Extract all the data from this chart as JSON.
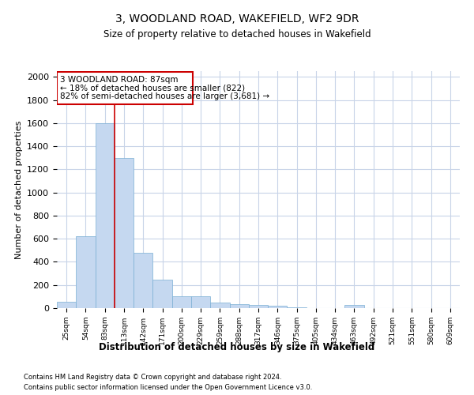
{
  "title1": "3, WOODLAND ROAD, WAKEFIELD, WF2 9DR",
  "title2": "Size of property relative to detached houses in Wakefield",
  "xlabel": "Distribution of detached houses by size in Wakefield",
  "ylabel": "Number of detached properties",
  "categories": [
    "25sqm",
    "54sqm",
    "83sqm",
    "113sqm",
    "142sqm",
    "171sqm",
    "200sqm",
    "229sqm",
    "259sqm",
    "288sqm",
    "317sqm",
    "346sqm",
    "375sqm",
    "405sqm",
    "434sqm",
    "463sqm",
    "492sqm",
    "521sqm",
    "551sqm",
    "580sqm",
    "609sqm"
  ],
  "values": [
    55,
    625,
    1600,
    1295,
    475,
    248,
    103,
    103,
    47,
    35,
    30,
    20,
    10,
    0,
    0,
    25,
    0,
    0,
    0,
    0,
    0
  ],
  "bar_color": "#c5d8f0",
  "bar_edge_color": "#7aafd4",
  "vline_index": 2,
  "vline_color": "#cc0000",
  "annotation_text_line1": "3 WOODLAND ROAD: 87sqm",
  "annotation_text_line2": "← 18% of detached houses are smaller (822)",
  "annotation_text_line3": "82% of semi-detached houses are larger (3,681) →",
  "annotation_box_color": "#cc0000",
  "footer1": "Contains HM Land Registry data © Crown copyright and database right 2024.",
  "footer2": "Contains public sector information licensed under the Open Government Licence v3.0.",
  "ylim": [
    0,
    2050
  ],
  "yticks": [
    0,
    200,
    400,
    600,
    800,
    1000,
    1200,
    1400,
    1600,
    1800,
    2000
  ],
  "background_color": "#ffffff",
  "grid_color": "#c8d4e8"
}
